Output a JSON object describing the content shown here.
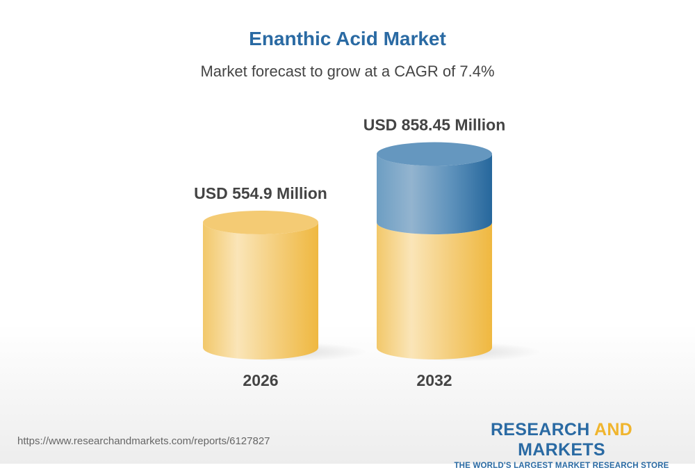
{
  "chart_data": {
    "type": "bar",
    "title": "Enanthic Acid Market",
    "subtitle": "Market forecast to grow at a CAGR of 7.4%",
    "categories": [
      "2026",
      "2032"
    ],
    "values": [
      554.9,
      858.45
    ],
    "data_labels": [
      "USD 554.9 Million",
      "USD 858.45 Million"
    ],
    "unit": "USD Million",
    "style": "3d-cylinder",
    "colors": {
      "base": "#f2c55c",
      "growth": "#2f6fa5",
      "title": "#2a6aa3"
    }
  },
  "footer": {
    "url": "https://www.researchandmarkets.com/reports/6127827",
    "logo_word1": "RESEARCH",
    "logo_word2": "AND",
    "logo_word3": "MARKETS",
    "logo_tagline": "THE WORLD'S LARGEST MARKET RESEARCH STORE"
  }
}
